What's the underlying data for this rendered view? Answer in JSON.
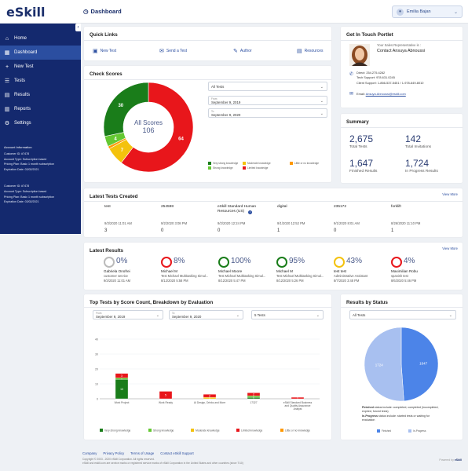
{
  "header": {
    "logo": "eSkill",
    "page_title": "Dashboard",
    "user_name": "Emilia Bajan"
  },
  "sidebar": {
    "items": [
      {
        "label": "Home",
        "icon": "home-icon",
        "glyph": "⌂"
      },
      {
        "label": "Dashboard",
        "icon": "dashboard-icon",
        "glyph": "▦"
      },
      {
        "label": "New Test",
        "icon": "plus-icon",
        "glyph": "+"
      },
      {
        "label": "Tests",
        "icon": "list-icon",
        "glyph": "☰"
      },
      {
        "label": "Results",
        "icon": "results-icon",
        "glyph": "▤"
      },
      {
        "label": "Reports",
        "icon": "reports-icon",
        "glyph": "▥"
      },
      {
        "label": "Settings",
        "icon": "gear-icon",
        "glyph": "⚙"
      }
    ],
    "account_title": "Account Information",
    "accounts": [
      {
        "lines": [
          "Customer ID: #7478",
          "Account Type: Subscription based",
          "Pricing Plan: Basic 1 month subscription",
          "Expiration Date: 03/02/2021"
        ]
      },
      {
        "lines": [
          "Customer ID: #7478",
          "Account Type: Subscription based",
          "Pricing Plan: Basic 1 month subscription",
          "Expiration Date: 03/02/2021"
        ]
      }
    ]
  },
  "quick_links": {
    "title": "Quick Links",
    "links": [
      {
        "label": "New Test",
        "icon": "document-plus-icon",
        "glyph": "▣"
      },
      {
        "label": "Send a Test",
        "icon": "send-icon",
        "glyph": "✉"
      },
      {
        "label": "Author",
        "icon": "pencil-icon",
        "glyph": "✎"
      },
      {
        "label": "Resources",
        "icon": "book-icon",
        "glyph": "▤"
      }
    ]
  },
  "contact": {
    "title": "Get In Touch Portlet",
    "intro": "Your Sales Representative is :",
    "name": "Contact Ansuya Abnoussi",
    "direct": "Direct: 254.275.4282",
    "tech": "Tech Support: 978.631.0245",
    "client": "Client Support: 1-866-537-5451 / 1-978-649-8010",
    "email_label": "Email:",
    "email": "Ansuya.Abnoussi@eskill.com"
  },
  "check_scores": {
    "title": "Check Scores",
    "center_label": "All Scores",
    "center_value": "106",
    "filter_value": "All Tests",
    "from_label": "From",
    "from_value": "September 9, 2019",
    "to_label": "To",
    "to_value": "September 9, 2020",
    "legend": [
      {
        "label": "Very strong knowledge",
        "color": "#1a7d1a"
      },
      {
        "label": "Moderate knowledge",
        "color": "#f4c20d"
      },
      {
        "label": "Little or no knowledge",
        "color": "#ff9800"
      },
      {
        "label": "Strong knowledge",
        "color": "#64c832"
      },
      {
        "label": "Limited knowledge",
        "color": "#e8161b"
      }
    ]
  },
  "summary": {
    "title": "Summary",
    "items": [
      {
        "value": "2,675",
        "label": "Total Tests"
      },
      {
        "value": "142",
        "label": "Total Invitations"
      },
      {
        "value": "1,647",
        "label": "Finished Results"
      },
      {
        "value": "1,724",
        "label": "In Progress Results"
      }
    ]
  },
  "latest_tests": {
    "title": "Latest Tests Created",
    "view_more": "View More",
    "columns": [
      {
        "name": "test",
        "date": "9/3/2020 11:01 AM",
        "count": "3"
      },
      {
        "name": "254598",
        "date": "9/2/2020 3:08 PM",
        "count": "0"
      },
      {
        "name": "eSkill Standard Human Resources (US)",
        "date": "9/2/2020 12:24 PM",
        "count": "0"
      },
      {
        "name": "digital",
        "date": "9/1/2020 12:52 PM",
        "count": "1"
      },
      {
        "name": "235172",
        "date": "9/1/2020 8:01 AM",
        "count": "0"
      },
      {
        "name": "forklift",
        "date": "8/26/2020 11:10 PM",
        "count": "1"
      }
    ]
  },
  "latest_results": {
    "title": "Latest Results",
    "view_more": "View More",
    "items": [
      {
        "pct": "0%",
        "name": "Gabriela Onofrei",
        "test": "customer service",
        "date": "9/3/2020 11:01 AM",
        "color": "#bbbbbb"
      },
      {
        "pct": "8%",
        "name": "Michael M",
        "test": "Test Michael Multitasking Simul...",
        "date": "8/12/2020 5:58 PM",
        "color": "#e8161b"
      },
      {
        "pct": "100%",
        "name": "Michael Moore",
        "test": "Test Michael Multitasking Simul...",
        "date": "8/12/2020 5:47 PM",
        "color": "#1a7d1a"
      },
      {
        "pct": "95%",
        "name": "Michael M",
        "test": "Test Michael Multitasking Simul...",
        "date": "8/12/2020 5:26 PM",
        "color": "#1a7d1a"
      },
      {
        "pct": "43%",
        "name": "test test",
        "test": "Administrative Assistant",
        "date": "8/7/2020 3:48 PM",
        "color": "#f4c20d"
      },
      {
        "pct": "4%",
        "name": "Maximilian Robu",
        "test": "spanish test",
        "date": "8/6/2020 5:46 PM",
        "color": "#e8161b"
      }
    ]
  },
  "top_tests": {
    "title": "Top Tests by Score Count, Breakdown by Evaluation",
    "from_label": "From",
    "from_value": "September 9, 2019",
    "to_label": "To",
    "to_value": "September 9, 2020",
    "count_value": "5 Tests"
  },
  "results_status": {
    "title": "Results by Status",
    "filter_value": "All Tests",
    "note1_bold": "Finished",
    "note1": " status include: completed, completed (incompleted, expired, forced tests)",
    "note2_bold": "In-Progress",
    "note2": " status include: started tests or waiting for evaluation"
  },
  "footer": {
    "links": [
      "Company",
      "Privacy Policy",
      "Terms of Usage",
      "Contact eSkill Support"
    ],
    "copyright": "Copyright © 2003 - 2020 eSkill Corporation. All rights reserved.",
    "trademark": "eSkill and eskill.com are service marks or registered service marks of eSkill Corporation in the United States and other countries (since 7/10)",
    "powered": "Powered by"
  },
  "chart_data": [
    {
      "type": "pie",
      "title": "Check Scores",
      "total": 106,
      "series": [
        {
          "name": "Very strong knowledge",
          "value": 30,
          "color": "#1a7d1a"
        },
        {
          "name": "Strong knowledge",
          "value": 4,
          "color": "#64c832"
        },
        {
          "name": "Moderate knowledge",
          "value": 7,
          "color": "#f4c20d"
        },
        {
          "name": "Little or no knowledge",
          "value": 1,
          "color": "#ff9800"
        },
        {
          "name": "Limited knowledge",
          "value": 64,
          "color": "#e8161b"
        }
      ]
    },
    {
      "type": "bar",
      "title": "Top Tests by Score Count, Breakdown by Evaluation",
      "stacked": true,
      "categories": [
        "Work Project",
        "Work Ready",
        "AI Design, Drinks and More",
        "17327",
        "eSkill Standard Business and Quality Assurance Analyst"
      ],
      "ylim": [
        0,
        40
      ],
      "yticks": [
        0,
        10,
        20,
        30,
        40
      ],
      "series": [
        {
          "name": "Very strong knowledge",
          "values": [
            13,
            0,
            0,
            1,
            0
          ],
          "color": "#1a7d1a"
        },
        {
          "name": "Strong knowledge",
          "values": [
            1,
            0,
            0,
            1,
            0
          ],
          "color": "#64c832"
        },
        {
          "name": "Moderate knowledge",
          "values": [
            0,
            0,
            1,
            0,
            0
          ],
          "color": "#f4c20d"
        },
        {
          "name": "Limited knowledge",
          "values": [
            3,
            5,
            2,
            2,
            1
          ],
          "color": "#e8161b"
        },
        {
          "name": "Little or no knowledge",
          "values": [
            0,
            0,
            0,
            0,
            0
          ],
          "color": "#ff9800"
        }
      ]
    },
    {
      "type": "pie",
      "title": "Results by Status",
      "series": [
        {
          "name": "Finished",
          "value": 1647,
          "color": "#4c84e8"
        },
        {
          "name": "In-Progress",
          "value": 1724,
          "color": "#a8c0f0"
        }
      ]
    }
  ]
}
